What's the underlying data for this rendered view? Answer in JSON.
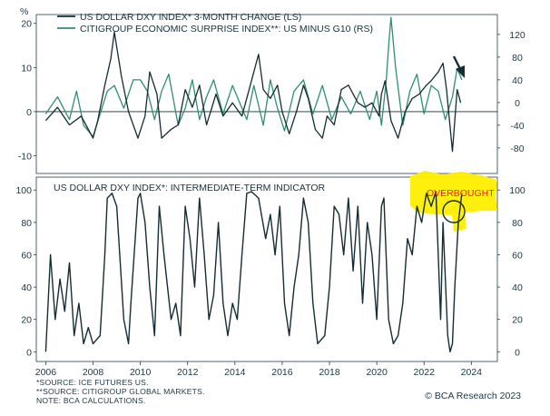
{
  "colors": {
    "dxy": "#142c34",
    "surprise": "#2f8e73",
    "zero_line": "#142c34",
    "highlight": "#ffee00",
    "overbought_text": "#e3261c",
    "grid": "#dde4e6"
  },
  "chart_data": [
    {
      "type": "line",
      "panel": "top",
      "unit_label": "%",
      "left_axis": {
        "ticks": [
          -10,
          0,
          10,
          20
        ],
        "range": [
          -14,
          22
        ]
      },
      "right_axis": {
        "ticks": [
          -80,
          -40,
          0,
          40,
          80,
          120
        ],
        "range": [
          -125,
          155
        ]
      },
      "series": [
        {
          "name": "US DOLLAR DXY INDEX* 3-MONTH CHANGE (LS)",
          "axis": "left",
          "x": [
            2006.0,
            2006.5,
            2007.0,
            2007.5,
            2008.0,
            2008.2,
            2008.5,
            2008.75,
            2008.9,
            2009.2,
            2009.5,
            2009.9,
            2010.2,
            2010.4,
            2010.7,
            2010.9,
            2011.3,
            2011.6,
            2011.9,
            2012.2,
            2012.5,
            2012.8,
            2013.2,
            2013.5,
            2013.9,
            2014.3,
            2014.6,
            2014.8,
            2015.0,
            2015.2,
            2015.5,
            2015.8,
            2016.0,
            2016.3,
            2016.6,
            2016.9,
            2017.1,
            2017.4,
            2017.7,
            2017.9,
            2018.2,
            2018.5,
            2018.8,
            2019.2,
            2019.5,
            2019.8,
            2020.1,
            2020.2,
            2020.35,
            2020.6,
            2020.9,
            2021.2,
            2021.5,
            2021.8,
            2022.1,
            2022.3,
            2022.6,
            2022.8,
            2022.95,
            2023.2,
            2023.4,
            2023.55
          ],
          "values": [
            -2,
            1,
            -3,
            -1,
            -6,
            -2,
            6,
            12,
            18,
            8,
            0,
            -6,
            -1,
            9,
            4,
            -6,
            -4,
            -3,
            5,
            1,
            6,
            -3,
            4,
            -1,
            2,
            -1,
            5,
            9,
            13,
            5,
            3,
            6,
            0,
            -5,
            0,
            6,
            3,
            -4,
            -6,
            -1,
            -3,
            5,
            6,
            2,
            1,
            2,
            -1,
            4,
            7,
            -2,
            -6,
            0,
            3,
            4,
            6,
            7,
            9,
            11,
            5,
            -9,
            5,
            2
          ]
        },
        {
          "name": "CITIGROUP ECONOMIC SURPRISE INDEX**: US MINUS G10 (RS)",
          "axis": "right",
          "x": [
            2006.0,
            2006.5,
            2007.0,
            2007.3,
            2007.6,
            2008.0,
            2008.3,
            2008.6,
            2008.9,
            2009.3,
            2009.7,
            2010.0,
            2010.3,
            2010.6,
            2010.9,
            2011.2,
            2011.6,
            2011.9,
            2012.2,
            2012.5,
            2012.8,
            2013.1,
            2013.5,
            2013.9,
            2014.2,
            2014.5,
            2014.8,
            2015.2,
            2015.5,
            2015.8,
            2016.1,
            2016.5,
            2016.9,
            2017.3,
            2017.7,
            2018.1,
            2018.5,
            2018.9,
            2019.3,
            2019.7,
            2020.0,
            2020.2,
            2020.4,
            2020.5,
            2020.6,
            2020.8,
            2021.1,
            2021.4,
            2021.7,
            2022.0,
            2022.3,
            2022.6,
            2022.9,
            2023.2,
            2023.4,
            2023.6
          ],
          "values": [
            -20,
            10,
            -30,
            20,
            -40,
            -60,
            -20,
            20,
            30,
            -10,
            40,
            40,
            20,
            -30,
            20,
            50,
            -40,
            -10,
            40,
            -30,
            10,
            40,
            -20,
            30,
            0,
            -30,
            30,
            -40,
            40,
            -10,
            -50,
            20,
            40,
            -20,
            30,
            -30,
            10,
            -20,
            20,
            -30,
            20,
            -40,
            40,
            100,
            150,
            60,
            -40,
            20,
            50,
            -20,
            30,
            20,
            -30,
            10,
            60,
            40
          ]
        }
      ],
      "annotations": [
        "down-arrow near latest data"
      ]
    },
    {
      "type": "line",
      "panel": "bottom",
      "title": "US DOLLAR DXY INDEX*: INTERMEDIATE-TERM INDICATOR",
      "left_axis": {
        "ticks": [
          0,
          20,
          40,
          60,
          80,
          100
        ],
        "range": [
          -6,
          108
        ]
      },
      "right_axis": {
        "ticks": [
          0,
          20,
          40,
          60,
          80,
          100
        ],
        "range": [
          -6,
          108
        ]
      },
      "series": [
        {
          "name": "US DOLLAR DXY INDEX*: INTERMEDIATE-TERM INDICATOR",
          "x": [
            2006.0,
            2006.2,
            2006.4,
            2006.6,
            2006.8,
            2007.0,
            2007.2,
            2007.4,
            2007.6,
            2007.8,
            2008.0,
            2008.3,
            2008.5,
            2008.6,
            2008.8,
            2009.0,
            2009.3,
            2009.5,
            2009.6,
            2009.9,
            2010.0,
            2010.2,
            2010.4,
            2010.6,
            2010.8,
            2011.0,
            2011.3,
            2011.5,
            2011.7,
            2011.9,
            2012.1,
            2012.3,
            2012.5,
            2012.7,
            2012.9,
            2013.1,
            2013.3,
            2013.5,
            2013.7,
            2013.9,
            2014.1,
            2014.3,
            2014.5,
            2014.7,
            2015.0,
            2015.3,
            2015.5,
            2015.7,
            2015.9,
            2016.1,
            2016.3,
            2016.5,
            2016.7,
            2016.9,
            2017.1,
            2017.3,
            2017.5,
            2017.8,
            2018.0,
            2018.2,
            2018.4,
            2018.6,
            2018.8,
            2019.0,
            2019.2,
            2019.4,
            2019.6,
            2019.8,
            2020.0,
            2020.2,
            2020.3,
            2020.5,
            2020.7,
            2020.9,
            2021.1,
            2021.3,
            2021.5,
            2021.7,
            2021.9,
            2022.1,
            2022.3,
            2022.5,
            2022.7,
            2022.8,
            2023.0,
            2023.1,
            2023.2,
            2023.3,
            2023.45,
            2023.6
          ],
          "values": [
            0,
            60,
            20,
            45,
            25,
            55,
            10,
            30,
            5,
            15,
            5,
            10,
            60,
            95,
            98,
            90,
            20,
            5,
            30,
            95,
            98,
            80,
            40,
            10,
            90,
            60,
            20,
            30,
            10,
            90,
            70,
            40,
            95,
            60,
            20,
            35,
            80,
            30,
            10,
            30,
            20,
            60,
            98,
            99,
            95,
            70,
            85,
            60,
            90,
            30,
            10,
            40,
            60,
            95,
            80,
            30,
            5,
            10,
            40,
            90,
            85,
            60,
            95,
            50,
            90,
            30,
            80,
            60,
            20,
            90,
            95,
            20,
            5,
            10,
            30,
            70,
            60,
            90,
            80,
            98,
            90,
            99,
            20,
            80,
            10,
            0,
            5,
            40,
            80,
            98
          ]
        }
      ],
      "annotations": [
        "OVERBOUGHT"
      ]
    }
  ],
  "x_axis": {
    "ticks": [
      "2006",
      "2008",
      "2010",
      "2012",
      "2014",
      "2016",
      "2018",
      "2020",
      "2022",
      "2024"
    ]
  },
  "footnotes": [
    "*SOURCE: ICE FUTURES US.",
    "**SOURCE: CITIGROUP GLOBAL MARKETS.",
    "NOTE: BCA CALCULATIONS."
  ],
  "copyright": "© BCA Research 2023"
}
